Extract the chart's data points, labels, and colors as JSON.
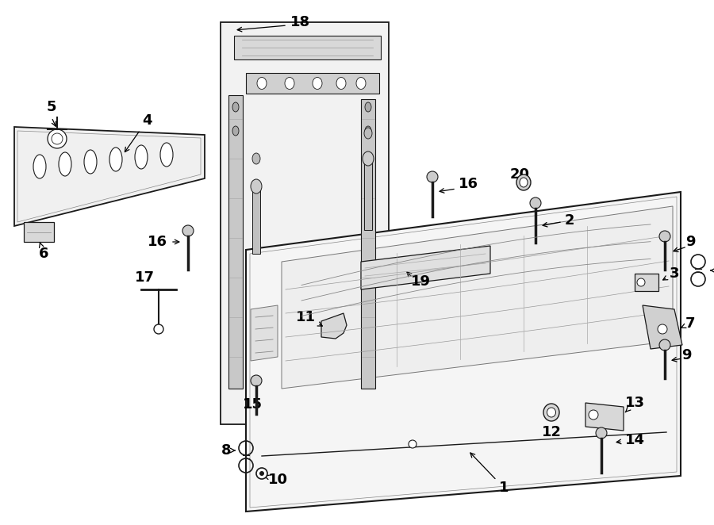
{
  "bg": "#ffffff",
  "lc": "#1a1a1a",
  "gray1": "#e8e8e8",
  "gray2": "#d0d0d0",
  "gray3": "#aaaaaa",
  "fig_w": 9.0,
  "fig_h": 6.62,
  "dpi": 100
}
